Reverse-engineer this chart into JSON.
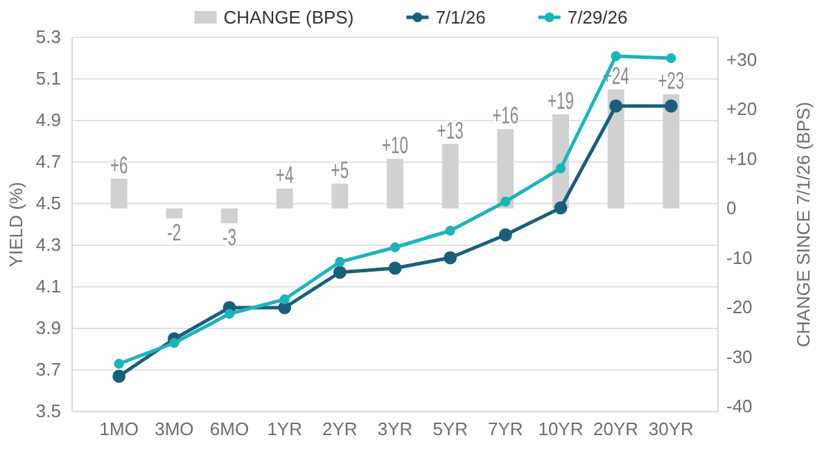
{
  "chart_data": {
    "type": "line",
    "categories": [
      "1MO",
      "3MO",
      "6MO",
      "1YR",
      "2YR",
      "3YR",
      "5YR",
      "7YR",
      "10YR",
      "20YR",
      "30YR"
    ],
    "ylabel": "YIELD (%)",
    "y2label": "CHANGE SINCE 7/1/26 (BPS)",
    "ylim": [
      3.5,
      5.3
    ],
    "yticks": [
      3.5,
      3.7,
      3.9,
      4.1,
      4.3,
      4.5,
      4.7,
      4.9,
      5.1,
      5.3
    ],
    "y2lim": [
      -41,
      34.5
    ],
    "y2ticks": [
      {
        "value": -40,
        "label": "-40"
      },
      {
        "value": -30,
        "label": "-30"
      },
      {
        "value": -20,
        "label": "-20"
      },
      {
        "value": -10,
        "label": "-10"
      },
      {
        "value": 0,
        "label": "0"
      },
      {
        "value": 10,
        "label": "+10"
      },
      {
        "value": 20,
        "label": "+20"
      },
      {
        "value": 30,
        "label": "+30"
      }
    ],
    "grid": "y",
    "legend": "top",
    "marker": "circle",
    "line_style": "solid",
    "series": [
      {
        "name": "CHANGE (BPS)",
        "type": "bar",
        "axis": "y2",
        "color": "#d0d1d3",
        "values": [
          6,
          -2,
          -3,
          4,
          5,
          10,
          13,
          16,
          19,
          24,
          23
        ],
        "value_labels": [
          "+6",
          "-2",
          "-3",
          "+4",
          "+5",
          "+10",
          "+13",
          "+16",
          "+19",
          "+24",
          "+23"
        ]
      },
      {
        "name": "7/1/26",
        "color": "#1a5f7a",
        "values": [
          3.67,
          3.85,
          4.0,
          4.0,
          4.17,
          4.19,
          4.24,
          4.35,
          4.48,
          4.97,
          4.97
        ]
      },
      {
        "name": "7/29/26",
        "color": "#1db4b8",
        "values": [
          3.73,
          3.83,
          3.97,
          4.04,
          4.22,
          4.29,
          4.37,
          4.51,
          4.67,
          5.21,
          5.2
        ]
      }
    ]
  }
}
